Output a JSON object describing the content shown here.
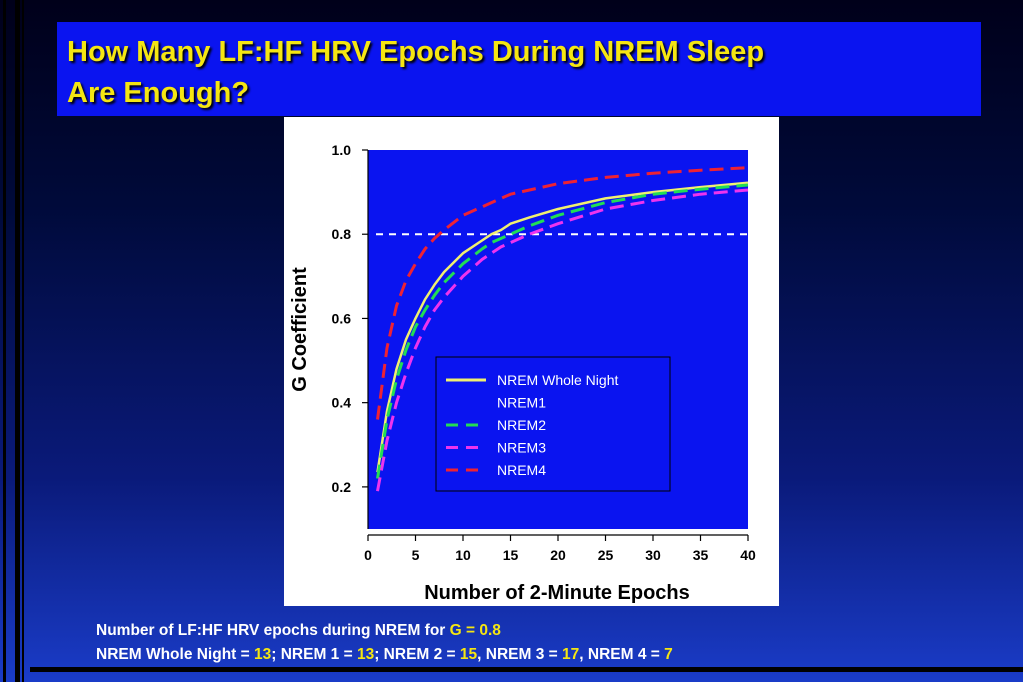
{
  "slide": {
    "title_line1": "How Many LF:HF HRV Epochs During NREM Sleep",
    "title_line2": "Are Enough?"
  },
  "footnotes": {
    "line1_prefix": "Number of LF:HF HRV epochs during NREM for ",
    "line1_highlight": "G = 0.8",
    "line2": [
      {
        "text": "NREM Whole Night = ",
        "hl": false
      },
      {
        "text": "13",
        "hl": true
      },
      {
        "text": "; NREM 1 = ",
        "hl": false
      },
      {
        "text": "13",
        "hl": true
      },
      {
        "text": "; NREM 2 = ",
        "hl": false
      },
      {
        "text": "15",
        "hl": true
      },
      {
        "text": ", NREM 3 = ",
        "hl": false
      },
      {
        "text": "17",
        "hl": true
      },
      {
        "text": ", NREM 4 = ",
        "hl": false
      },
      {
        "text": "7",
        "hl": true
      }
    ]
  },
  "colors": {
    "title_text": "#f5e612",
    "title_bg": "#0a14f0",
    "plot_bg": "#0a14f0",
    "highlight": "#f5e612"
  },
  "chart_data": {
    "type": "line",
    "xlabel": "Number of 2-Minute Epochs",
    "ylabel": "G Coefficient",
    "xlim": [
      0,
      40
    ],
    "ylim": [
      0.1,
      1.0
    ],
    "xticks": [
      0,
      5,
      10,
      15,
      20,
      25,
      30,
      35,
      40
    ],
    "yticks": [
      0.2,
      0.4,
      0.6,
      0.8,
      1.0
    ],
    "ytick_labels": [
      "0.2",
      "0.4",
      "0.6",
      "0.8",
      "1.0"
    ],
    "grid": false,
    "legend_position": "lower-right",
    "reference_line": {
      "y": 0.8,
      "style": "dashed",
      "color": "#ffffff"
    },
    "x": [
      1,
      2,
      3,
      4,
      5,
      6,
      7,
      8,
      10,
      12,
      13,
      14,
      15,
      17,
      20,
      25,
      30,
      35,
      40
    ],
    "series": [
      {
        "name": "NREM Whole Night",
        "color": "#f0f070",
        "style": "solid",
        "values": [
          0.235,
          0.38,
          0.48,
          0.55,
          0.6,
          0.645,
          0.68,
          0.71,
          0.755,
          0.785,
          0.8,
          0.81,
          0.825,
          0.84,
          0.86,
          0.885,
          0.9,
          0.912,
          0.922
        ]
      },
      {
        "name": "NREM1",
        "color": "#ffffff",
        "style": "none",
        "values": [
          0.235,
          0.38,
          0.48,
          0.55,
          0.6,
          0.645,
          0.68,
          0.71,
          0.755,
          0.785,
          0.8,
          0.81,
          0.825,
          0.84,
          0.86,
          0.885,
          0.9,
          0.912,
          0.922
        ]
      },
      {
        "name": "NREM2",
        "color": "#22dd55",
        "style": "dashed",
        "values": [
          0.22,
          0.36,
          0.455,
          0.525,
          0.58,
          0.62,
          0.655,
          0.685,
          0.73,
          0.765,
          0.78,
          0.79,
          0.8,
          0.82,
          0.845,
          0.875,
          0.895,
          0.907,
          0.917
        ]
      },
      {
        "name": "NREM3",
        "color": "#ee33ee",
        "style": "dashed",
        "values": [
          0.19,
          0.31,
          0.4,
          0.47,
          0.53,
          0.58,
          0.62,
          0.65,
          0.7,
          0.74,
          0.755,
          0.77,
          0.78,
          0.8,
          0.825,
          0.86,
          0.88,
          0.895,
          0.905
        ]
      },
      {
        "name": "NREM4",
        "color": "#ee2233",
        "style": "dashed",
        "values": [
          0.36,
          0.53,
          0.63,
          0.69,
          0.73,
          0.765,
          0.79,
          0.81,
          0.845,
          0.865,
          0.875,
          0.885,
          0.895,
          0.905,
          0.92,
          0.935,
          0.945,
          0.952,
          0.958
        ]
      }
    ]
  }
}
